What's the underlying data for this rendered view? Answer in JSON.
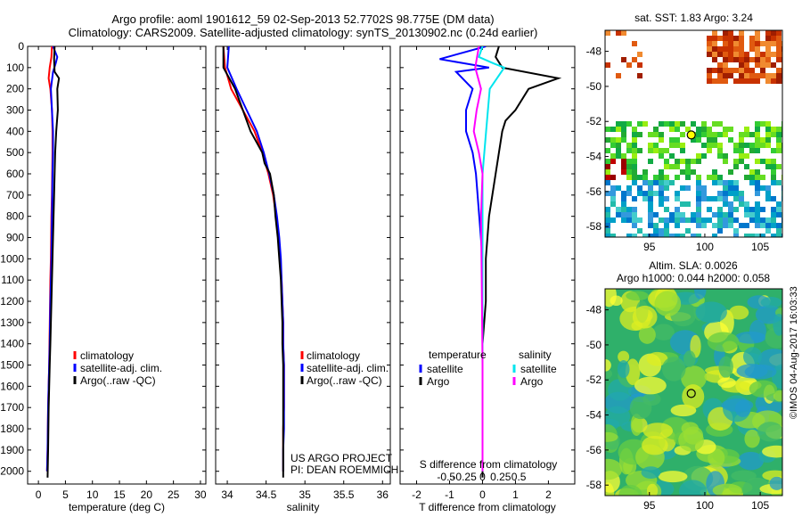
{
  "header": {
    "title_line1": "Argo profile: aoml 1901612_59 02-Sep-2013 52.7702S 98.775E (DM data)",
    "title_line2": "Climatology: CARS2009. Satellite-adjusted climatology: synTS_20130902.nc (0.24d earlier)"
  },
  "colors": {
    "climatology": "#ff0000",
    "satellite": "#0000ff",
    "argo": "#000000",
    "satellite_salinity": "#00e5ee",
    "argo_salinity": "#ff00ff",
    "marker": "#000000"
  },
  "chart_data": [
    {
      "type": "line",
      "id": "temperature",
      "xlabel": "temperature (deg C)",
      "xlim": [
        -2,
        31
      ],
      "ylim": [
        2060,
        0
      ],
      "xticks": [
        0,
        5,
        10,
        15,
        20,
        25,
        30
      ],
      "yticks": [
        0,
        100,
        200,
        300,
        400,
        500,
        600,
        700,
        800,
        900,
        1000,
        1100,
        1200,
        1300,
        1400,
        1500,
        1600,
        1700,
        1800,
        1900,
        2000
      ],
      "legend": [
        "climatology",
        "satellite-adj. clim.",
        "Argo(..raw -QC)"
      ],
      "series": [
        {
          "name": "climatology",
          "color": "#ff0000",
          "x": [
            2.5,
            2.4,
            2.1,
            1.9,
            2.2,
            2.5,
            2.6,
            2.6,
            2.55,
            2.5,
            2.4,
            2.35,
            2.3,
            2.2,
            2.15,
            2.05,
            2.0,
            1.9,
            1.8,
            1.7,
            1.6
          ],
          "y": [
            0,
            50,
            100,
            150,
            200,
            300,
            400,
            500,
            600,
            700,
            800,
            900,
            1000,
            1100,
            1200,
            1400,
            1500,
            1600,
            1700,
            1900,
            2000
          ]
        },
        {
          "name": "satellite-adj. clim.",
          "color": "#0000ff",
          "x": [
            2.7,
            3.5,
            3.2,
            2.7,
            2.3,
            2.5,
            2.7,
            2.7,
            2.6,
            2.55,
            2.5,
            2.45,
            2.4,
            2.3,
            2.2,
            2.1,
            2.0,
            1.9,
            1.8,
            1.7,
            1.6
          ],
          "y": [
            0,
            50,
            80,
            120,
            200,
            300,
            400,
            500,
            600,
            700,
            800,
            900,
            1000,
            1100,
            1200,
            1400,
            1500,
            1600,
            1700,
            1900,
            2000
          ]
        },
        {
          "name": "Argo(..raw -QC)",
          "color": "#000000",
          "x": [
            3.0,
            2.9,
            3.0,
            3.8,
            3.5,
            3.6,
            3.3,
            3.1,
            3.0,
            2.9,
            2.8,
            2.7,
            2.6,
            2.5,
            2.4,
            2.3,
            2.2,
            2.1,
            2.0,
            1.9,
            1.8,
            1.7
          ],
          "y": [
            0,
            60,
            120,
            150,
            200,
            300,
            400,
            500,
            600,
            700,
            800,
            900,
            1000,
            1100,
            1200,
            1300,
            1400,
            1500,
            1600,
            1700,
            1900,
            2030
          ]
        }
      ]
    },
    {
      "type": "line",
      "id": "salinity",
      "xlabel": "salinity",
      "xlim": [
        33.85,
        36.1
      ],
      "ylim": [
        2060,
        0
      ],
      "xticks": [
        34,
        34.5,
        35,
        35.5,
        36
      ],
      "legend": [
        "climatology",
        "satellite-adj. clim.",
        "Argo(..raw -QC)"
      ],
      "series": [
        {
          "name": "climatology",
          "color": "#ff0000",
          "x": [
            33.95,
            33.97,
            34.05,
            34.2,
            34.35,
            34.45,
            34.53,
            34.59,
            34.63,
            34.66,
            34.68,
            34.7,
            34.71,
            34.72,
            34.72,
            34.73,
            34.73,
            34.73,
            34.72,
            34.72,
            34.72
          ],
          "y": [
            0,
            100,
            200,
            300,
            400,
            500,
            600,
            700,
            800,
            900,
            1000,
            1100,
            1200,
            1300,
            1400,
            1500,
            1600,
            1700,
            1800,
            1900,
            2000
          ]
        },
        {
          "name": "satellite-adj. clim.",
          "color": "#0000ff",
          "x": [
            34.02,
            34.0,
            34.12,
            34.25,
            34.38,
            34.47,
            34.54,
            34.6,
            34.64,
            34.67,
            34.69,
            34.7,
            34.71,
            34.72,
            34.72,
            34.73,
            34.73,
            34.73,
            34.73,
            34.72,
            34.72
          ],
          "y": [
            0,
            100,
            200,
            300,
            400,
            500,
            600,
            700,
            800,
            900,
            1000,
            1100,
            1200,
            1300,
            1400,
            1500,
            1600,
            1700,
            1800,
            1900,
            2000
          ]
        },
        {
          "name": "Argo(..raw -QC)",
          "color": "#000000",
          "x": [
            33.95,
            33.95,
            34.1,
            34.2,
            34.3,
            34.45,
            34.48,
            34.55,
            34.6,
            34.62,
            34.65,
            34.67,
            34.69,
            34.7,
            34.71,
            34.71,
            34.72,
            34.72,
            34.72,
            34.72,
            34.72,
            34.72
          ],
          "y": [
            0,
            100,
            200,
            300,
            400,
            500,
            550,
            600,
            700,
            800,
            900,
            1000,
            1100,
            1200,
            1300,
            1400,
            1500,
            1600,
            1700,
            1800,
            1900,
            2030
          ]
        }
      ]
    },
    {
      "type": "line",
      "id": "difference",
      "xlabel": "T difference from climatology",
      "secondary_xlabel": "S difference from climatology",
      "xlim": [
        -2.5,
        2.8
      ],
      "ylim": [
        2060,
        0
      ],
      "xticks": [
        -2,
        -1,
        0,
        1,
        2
      ],
      "secondary_xticks": [
        -0.5,
        -0.25,
        0,
        0.25,
        0.5
      ],
      "legend_headers": [
        "temperature",
        "salinity"
      ],
      "legend": [
        "satellite",
        "Argo",
        "satellite",
        "Argo"
      ],
      "series": [
        {
          "name": "satellite",
          "quantity": "temperature",
          "color": "#0000ff",
          "x": [
            0.1,
            -1.3,
            0.2,
            -0.8,
            -0.3,
            -0.5,
            -0.5,
            -0.3,
            -0.2,
            -0.1,
            0.0,
            0.0,
            0.0,
            0.0
          ],
          "y": [
            0,
            60,
            100,
            120,
            200,
            300,
            400,
            500,
            600,
            800,
            1000,
            1400,
            1800,
            2000
          ]
        },
        {
          "name": "Argo",
          "quantity": "temperature",
          "color": "#000000",
          "x": [
            0.5,
            0.4,
            0.6,
            2.3,
            1.4,
            1.0,
            0.7,
            0.6,
            0.5,
            0.4,
            0.3,
            0.2,
            0.1,
            0.1,
            0.0,
            0.0,
            0.0,
            0.0
          ],
          "y": [
            0,
            50,
            100,
            150,
            200,
            300,
            350,
            400,
            500,
            600,
            700,
            800,
            1000,
            1200,
            1400,
            1600,
            1800,
            2030
          ]
        },
        {
          "name": "satellite",
          "quantity": "salinity",
          "color": "#00e5ee",
          "x": [
            0.0,
            -0.05,
            0.15,
            0.3,
            0.1,
            0.05,
            0.0,
            0.0,
            0.0,
            0.0,
            0.0
          ],
          "y": [
            0,
            50,
            80,
            100,
            200,
            400,
            600,
            800,
            1200,
            1600,
            2000
          ]
        },
        {
          "name": "Argo",
          "quantity": "salinity",
          "color": "#ff00ff",
          "x": [
            -0.05,
            -0.1,
            -0.02,
            -0.08,
            -0.12,
            -0.05,
            0.0,
            -0.02,
            -0.01,
            0.0,
            0.0
          ],
          "y": [
            0,
            100,
            200,
            300,
            400,
            500,
            600,
            800,
            1100,
            1500,
            2000
          ]
        }
      ]
    },
    {
      "type": "heatmap",
      "id": "sst_map",
      "title": "sat. SST: 1.83 Argo: 3.24",
      "xlim": [
        91,
        107
      ],
      "ylim": [
        -58.6,
        -46.8
      ],
      "xticks": [
        95,
        100,
        105
      ],
      "yticks": [
        -48,
        -50,
        -52,
        -54,
        -56,
        -58
      ],
      "marker": {
        "lon": 98.775,
        "lat": -52.77
      }
    },
    {
      "type": "heatmap",
      "id": "sla_map",
      "title": "Altim. SLA: 0.0026",
      "subtitle": "Argo h1000: 0.044 h2000: 0.058",
      "xlim": [
        91,
        107
      ],
      "ylim": [
        -58.6,
        -46.8
      ],
      "xticks": [
        95,
        100,
        105
      ],
      "yticks": [
        -48,
        -50,
        -52,
        -54,
        -56,
        -58
      ],
      "marker": {
        "lon": 98.775,
        "lat": -52.77
      }
    }
  ],
  "annotations": {
    "project_line1": "US ARGO PROJECT",
    "project_line2": "PI: DEAN ROEMMICH",
    "credit": "©IMOS 04-Aug-2017 16:03:33"
  }
}
